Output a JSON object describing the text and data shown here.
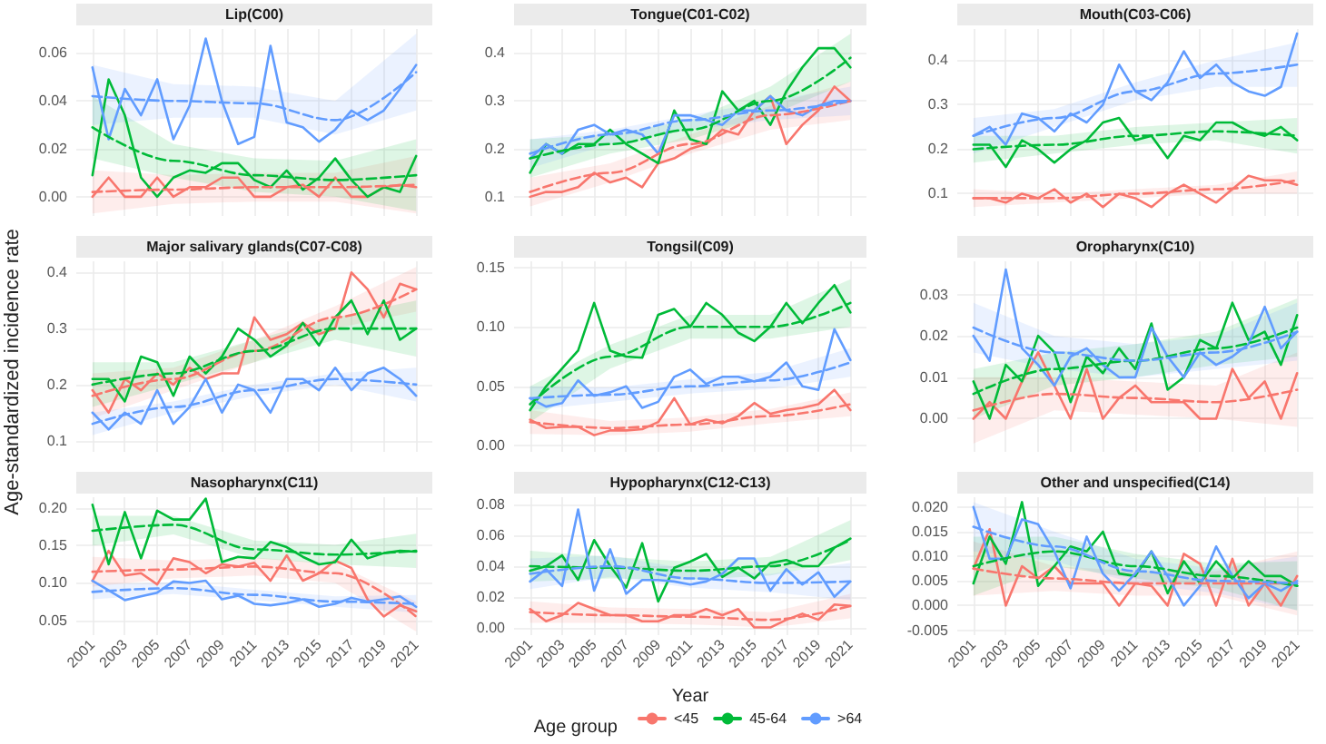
{
  "chart_data": [
    {
      "type": "line",
      "title": "Lip(C00)",
      "tick_labels": "y",
      "grid": true,
      "marker": "none",
      "x": [
        2001,
        2002,
        2003,
        2004,
        2005,
        2006,
        2007,
        2008,
        2009,
        2010,
        2011,
        2012,
        2013,
        2014,
        2015,
        2016,
        2017,
        2018,
        2019,
        2020,
        2021
      ],
      "xlim": [
        2000,
        2022
      ],
      "xticks": [
        2001,
        2003,
        2005,
        2007,
        2009,
        2011,
        2013,
        2015,
        2017,
        2019,
        2021
      ],
      "ylim": [
        -0.008,
        0.07
      ],
      "yticks": [
        {
          "value": 0,
          "label": "0.00"
        },
        {
          "value": 0.02,
          "label": "0.02"
        },
        {
          "value": 0.04,
          "label": "0.04"
        },
        {
          "value": 0.06,
          "label": "0.06"
        }
      ],
      "series": [
        {
          "color": "#f8766d",
          "values": [
            0.0,
            0.008,
            0.0,
            0.0,
            0.008,
            0.0,
            0.004,
            0.004,
            0.008,
            0.008,
            0.0,
            0.0,
            0.004,
            0.005,
            0.0,
            0.008,
            0.0,
            0.0,
            0.004,
            0.005,
            0.004
          ]
        },
        {
          "color": "#00ba38",
          "values": [
            0.009,
            0.049,
            0.034,
            0.008,
            0.0,
            0.008,
            0.011,
            0.01,
            0.014,
            0.014,
            0.007,
            0.004,
            0.011,
            0.003,
            0.008,
            0.016,
            0.007,
            0.0,
            0.004,
            0.002,
            0.017
          ]
        },
        {
          "color": "#619cff",
          "values": [
            0.054,
            0.024,
            0.045,
            0.034,
            0.049,
            0.024,
            0.038,
            0.066,
            0.04,
            0.022,
            0.025,
            0.063,
            0.031,
            0.029,
            0.023,
            0.028,
            0.036,
            0.032,
            0.036,
            0.045,
            0.055
          ]
        },
        {
          "type": "line",
          "color": "#f8766d",
          "line_style": "dashed",
          "x": [
            2001,
            2006,
            2011,
            2016,
            2021
          ],
          "values": [
            0.002,
            0.003,
            0.004,
            0.004,
            0.005
          ],
          "lower": [
            -0.007,
            -0.003,
            -0.002,
            -0.002,
            -0.007
          ],
          "upper": [
            0.011,
            0.009,
            0.01,
            0.01,
            0.017
          ]
        },
        {
          "type": "line",
          "color": "#00ba38",
          "line_style": "dashed",
          "x": [
            2001,
            2006,
            2011,
            2016,
            2021
          ],
          "values": [
            0.029,
            0.015,
            0.009,
            0.007,
            0.009
          ],
          "lower": [
            0.016,
            0.008,
            0.002,
            0.0,
            -0.006
          ],
          "upper": [
            0.042,
            0.022,
            0.016,
            0.015,
            0.024
          ]
        },
        {
          "type": "line",
          "color": "#619cff",
          "line_style": "dashed",
          "x": [
            2001,
            2006,
            2011,
            2016,
            2021
          ],
          "values": [
            0.042,
            0.04,
            0.039,
            0.032,
            0.052
          ],
          "lower": [
            0.03,
            0.033,
            0.033,
            0.026,
            0.036
          ],
          "upper": [
            0.055,
            0.047,
            0.046,
            0.04,
            0.068
          ]
        }
      ]
    },
    {
      "type": "line",
      "title": "Tongue(C01-C02)",
      "tick_labels": "y",
      "grid": true,
      "marker": "none",
      "x": [
        2001,
        2002,
        2003,
        2004,
        2005,
        2006,
        2007,
        2008,
        2009,
        2010,
        2011,
        2012,
        2013,
        2014,
        2015,
        2016,
        2017,
        2018,
        2019,
        2020,
        2021
      ],
      "xlim": [
        2000,
        2022
      ],
      "xticks": [
        2001,
        2003,
        2005,
        2007,
        2009,
        2011,
        2013,
        2015,
        2017,
        2019,
        2021
      ],
      "ylim": [
        0.06,
        0.45
      ],
      "yticks": [
        0.1,
        0.2,
        0.3,
        0.4
      ],
      "series": [
        {
          "color": "#f8766d",
          "values": [
            0.1,
            0.11,
            0.11,
            0.12,
            0.15,
            0.13,
            0.14,
            0.12,
            0.17,
            0.18,
            0.2,
            0.21,
            0.24,
            0.23,
            0.28,
            0.31,
            0.21,
            0.25,
            0.28,
            0.33,
            0.3
          ]
        },
        {
          "color": "#00ba38",
          "values": [
            0.15,
            0.21,
            0.19,
            0.21,
            0.21,
            0.24,
            0.21,
            0.19,
            0.17,
            0.28,
            0.22,
            0.21,
            0.32,
            0.28,
            0.3,
            0.25,
            0.32,
            0.37,
            0.41,
            0.41,
            0.37
          ]
        },
        {
          "color": "#619cff",
          "values": [
            0.18,
            0.21,
            0.19,
            0.24,
            0.25,
            0.23,
            0.24,
            0.23,
            0.19,
            0.27,
            0.27,
            0.26,
            0.25,
            0.28,
            0.28,
            0.31,
            0.28,
            0.27,
            0.29,
            0.3,
            0.3
          ]
        },
        {
          "type": "line",
          "color": "#f8766d",
          "line_style": "dashed",
          "x": [
            2001,
            2006,
            2011,
            2016,
            2021
          ],
          "values": [
            0.11,
            0.15,
            0.21,
            0.27,
            0.3
          ],
          "lower": [
            0.08,
            0.13,
            0.19,
            0.24,
            0.26
          ],
          "upper": [
            0.14,
            0.17,
            0.23,
            0.29,
            0.34
          ]
        },
        {
          "type": "line",
          "color": "#00ba38",
          "line_style": "dashed",
          "x": [
            2001,
            2006,
            2011,
            2016,
            2021
          ],
          "values": [
            0.18,
            0.21,
            0.24,
            0.3,
            0.39
          ],
          "lower": [
            0.14,
            0.19,
            0.22,
            0.27,
            0.34
          ],
          "upper": [
            0.22,
            0.23,
            0.26,
            0.33,
            0.44
          ]
        },
        {
          "type": "line",
          "color": "#619cff",
          "line_style": "dashed",
          "x": [
            2001,
            2006,
            2011,
            2016,
            2021
          ],
          "values": [
            0.19,
            0.23,
            0.26,
            0.28,
            0.3
          ],
          "lower": [
            0.16,
            0.21,
            0.24,
            0.26,
            0.27
          ],
          "upper": [
            0.22,
            0.24,
            0.27,
            0.3,
            0.33
          ]
        }
      ]
    },
    {
      "type": "line",
      "title": "Mouth(C03-C06)",
      "tick_labels": "y",
      "grid": true,
      "marker": "none",
      "x": [
        2001,
        2002,
        2003,
        2004,
        2005,
        2006,
        2007,
        2008,
        2009,
        2010,
        2011,
        2012,
        2013,
        2014,
        2015,
        2016,
        2017,
        2018,
        2019,
        2020,
        2021
      ],
      "xlim": [
        2000,
        2022
      ],
      "xticks": [
        2001,
        2003,
        2005,
        2007,
        2009,
        2011,
        2013,
        2015,
        2017,
        2019,
        2021
      ],
      "ylim": [
        0.05,
        0.47
      ],
      "yticks": [
        0.1,
        0.2,
        0.3,
        0.4
      ],
      "series": [
        {
          "color": "#f8766d",
          "values": [
            0.09,
            0.09,
            0.08,
            0.1,
            0.09,
            0.11,
            0.08,
            0.1,
            0.07,
            0.1,
            0.09,
            0.07,
            0.1,
            0.12,
            0.1,
            0.08,
            0.11,
            0.14,
            0.13,
            0.13,
            0.12
          ]
        },
        {
          "color": "#00ba38",
          "values": [
            0.21,
            0.21,
            0.16,
            0.22,
            0.2,
            0.17,
            0.2,
            0.22,
            0.26,
            0.27,
            0.22,
            0.23,
            0.18,
            0.23,
            0.22,
            0.26,
            0.26,
            0.24,
            0.23,
            0.25,
            0.22
          ]
        },
        {
          "color": "#619cff",
          "values": [
            0.23,
            0.25,
            0.21,
            0.28,
            0.27,
            0.24,
            0.28,
            0.26,
            0.3,
            0.39,
            0.33,
            0.31,
            0.35,
            0.42,
            0.36,
            0.39,
            0.35,
            0.33,
            0.32,
            0.34,
            0.46
          ]
        },
        {
          "type": "line",
          "color": "#f8766d",
          "line_style": "dashed",
          "x": [
            2001,
            2006,
            2011,
            2016,
            2021
          ],
          "values": [
            0.09,
            0.09,
            0.1,
            0.11,
            0.13
          ],
          "lower": [
            0.07,
            0.08,
            0.09,
            0.1,
            0.1
          ],
          "upper": [
            0.11,
            0.1,
            0.11,
            0.12,
            0.15
          ]
        },
        {
          "type": "line",
          "color": "#00ba38",
          "line_style": "dashed",
          "x": [
            2001,
            2006,
            2011,
            2016,
            2021
          ],
          "values": [
            0.2,
            0.21,
            0.23,
            0.24,
            0.23
          ],
          "lower": [
            0.17,
            0.19,
            0.21,
            0.22,
            0.19
          ],
          "upper": [
            0.23,
            0.23,
            0.25,
            0.26,
            0.27
          ]
        },
        {
          "type": "line",
          "color": "#619cff",
          "line_style": "dashed",
          "x": [
            2001,
            2006,
            2011,
            2016,
            2021
          ],
          "values": [
            0.23,
            0.27,
            0.33,
            0.37,
            0.39
          ],
          "lower": [
            0.19,
            0.25,
            0.31,
            0.34,
            0.34
          ],
          "upper": [
            0.27,
            0.29,
            0.35,
            0.4,
            0.44
          ]
        }
      ]
    },
    {
      "type": "line",
      "title": "Major salivary glands(C07-C08)",
      "ylabel": "Age-standardized incidence rate",
      "tick_labels": "y",
      "grid": true,
      "marker": "none",
      "x": [
        2001,
        2002,
        2003,
        2004,
        2005,
        2006,
        2007,
        2008,
        2009,
        2010,
        2011,
        2012,
        2013,
        2014,
        2015,
        2016,
        2017,
        2018,
        2019,
        2020,
        2021
      ],
      "xlim": [
        2000,
        2022
      ],
      "xticks": [
        2001,
        2003,
        2005,
        2007,
        2009,
        2011,
        2013,
        2015,
        2017,
        2019,
        2021
      ],
      "ylim": [
        0.08,
        0.42
      ],
      "yticks": [
        0.1,
        0.2,
        0.3,
        0.4
      ],
      "series": [
        {
          "color": "#f8766d",
          "values": [
            0.19,
            0.15,
            0.21,
            0.19,
            0.22,
            0.2,
            0.23,
            0.21,
            0.22,
            0.22,
            0.32,
            0.28,
            0.29,
            0.31,
            0.29,
            0.3,
            0.4,
            0.37,
            0.32,
            0.38,
            0.37
          ]
        },
        {
          "color": "#00ba38",
          "values": [
            0.21,
            0.21,
            0.17,
            0.25,
            0.24,
            0.18,
            0.25,
            0.22,
            0.25,
            0.3,
            0.28,
            0.25,
            0.27,
            0.31,
            0.27,
            0.32,
            0.35,
            0.29,
            0.35,
            0.28,
            0.3
          ]
        },
        {
          "color": "#619cff",
          "values": [
            0.15,
            0.12,
            0.15,
            0.13,
            0.19,
            0.13,
            0.16,
            0.21,
            0.15,
            0.2,
            0.19,
            0.15,
            0.21,
            0.21,
            0.19,
            0.23,
            0.19,
            0.22,
            0.23,
            0.21,
            0.18
          ]
        },
        {
          "type": "line",
          "color": "#f8766d",
          "line_style": "dashed",
          "x": [
            2001,
            2006,
            2011,
            2016,
            2021
          ],
          "values": [
            0.18,
            0.21,
            0.26,
            0.32,
            0.37
          ],
          "lower": [
            0.14,
            0.19,
            0.24,
            0.3,
            0.33
          ],
          "upper": [
            0.22,
            0.23,
            0.28,
            0.34,
            0.41
          ]
        },
        {
          "type": "line",
          "color": "#00ba38",
          "line_style": "dashed",
          "x": [
            2001,
            2006,
            2011,
            2016,
            2021
          ],
          "values": [
            0.2,
            0.22,
            0.26,
            0.3,
            0.3
          ],
          "lower": [
            0.16,
            0.2,
            0.24,
            0.28,
            0.25
          ],
          "upper": [
            0.24,
            0.24,
            0.28,
            0.32,
            0.35
          ]
        },
        {
          "type": "line",
          "color": "#619cff",
          "line_style": "dashed",
          "x": [
            2001,
            2006,
            2011,
            2016,
            2021
          ],
          "values": [
            0.13,
            0.16,
            0.19,
            0.21,
            0.2
          ],
          "lower": [
            0.11,
            0.15,
            0.18,
            0.2,
            0.17
          ],
          "upper": [
            0.15,
            0.17,
            0.2,
            0.22,
            0.23
          ]
        }
      ]
    },
    {
      "type": "line",
      "title": "Tongsil(C09)",
      "tick_labels": "y",
      "grid": true,
      "marker": "none",
      "x": [
        2001,
        2002,
        2003,
        2004,
        2005,
        2006,
        2007,
        2008,
        2009,
        2010,
        2011,
        2012,
        2013,
        2014,
        2015,
        2016,
        2017,
        2018,
        2019,
        2020,
        2021
      ],
      "xlim": [
        2000,
        2022
      ],
      "xticks": [
        2001,
        2003,
        2005,
        2007,
        2009,
        2011,
        2013,
        2015,
        2017,
        2019,
        2021
      ],
      "ylim": [
        -0.005,
        0.155
      ],
      "yticks": [
        {
          "value": 0,
          "label": "0.00"
        },
        {
          "value": 0.05,
          "label": "0.05"
        },
        {
          "value": 0.1,
          "label": "0.10"
        },
        {
          "value": 0.15,
          "label": "0.15"
        }
      ],
      "series": [
        {
          "color": "#f8766d",
          "values": [
            0.022,
            0.015,
            0.016,
            0.016,
            0.009,
            0.013,
            0.013,
            0.014,
            0.02,
            0.04,
            0.018,
            0.022,
            0.019,
            0.025,
            0.036,
            0.027,
            0.03,
            0.032,
            0.035,
            0.047,
            0.03
          ]
        },
        {
          "color": "#00ba38",
          "values": [
            0.03,
            0.05,
            0.065,
            0.08,
            0.12,
            0.08,
            0.075,
            0.074,
            0.11,
            0.115,
            0.1,
            0.12,
            0.11,
            0.095,
            0.088,
            0.1,
            0.12,
            0.103,
            0.12,
            0.135,
            0.112
          ]
        },
        {
          "color": "#619cff",
          "values": [
            0.04,
            0.033,
            0.036,
            0.055,
            0.042,
            0.045,
            0.05,
            0.032,
            0.037,
            0.058,
            0.064,
            0.052,
            0.058,
            0.058,
            0.054,
            0.058,
            0.07,
            0.05,
            0.047,
            0.098,
            0.072
          ]
        },
        {
          "type": "line",
          "color": "#f8766d",
          "line_style": "dashed",
          "x": [
            2001,
            2006,
            2011,
            2016,
            2021
          ],
          "values": [
            0.02,
            0.015,
            0.018,
            0.025,
            0.035
          ],
          "lower": [
            0.01,
            0.009,
            0.012,
            0.019,
            0.025
          ],
          "upper": [
            0.03,
            0.021,
            0.024,
            0.031,
            0.045
          ]
        },
        {
          "type": "line",
          "color": "#00ba38",
          "line_style": "dashed",
          "x": [
            2001,
            2006,
            2011,
            2016,
            2021
          ],
          "values": [
            0.035,
            0.075,
            0.1,
            0.1,
            0.12
          ],
          "lower": [
            0.02,
            0.065,
            0.09,
            0.09,
            0.1
          ],
          "upper": [
            0.05,
            0.085,
            0.11,
            0.11,
            0.14
          ]
        },
        {
          "type": "line",
          "color": "#619cff",
          "line_style": "dashed",
          "x": [
            2001,
            2006,
            2011,
            2016,
            2021
          ],
          "values": [
            0.04,
            0.043,
            0.05,
            0.055,
            0.07
          ],
          "lower": [
            0.03,
            0.037,
            0.044,
            0.048,
            0.058
          ],
          "upper": [
            0.05,
            0.049,
            0.056,
            0.062,
            0.082
          ]
        }
      ]
    },
    {
      "type": "line",
      "title": "Oropharynx(C10)",
      "tick_labels": "y",
      "grid": true,
      "marker": "none",
      "x": [
        2001,
        2002,
        2003,
        2004,
        2005,
        2006,
        2007,
        2008,
        2009,
        2010,
        2011,
        2012,
        2013,
        2014,
        2015,
        2016,
        2017,
        2018,
        2019,
        2020,
        2021
      ],
      "xlim": [
        2000,
        2022
      ],
      "xticks": [
        2001,
        2003,
        2005,
        2007,
        2009,
        2011,
        2013,
        2015,
        2017,
        2019,
        2021
      ],
      "ylim": [
        -0.008,
        0.038
      ],
      "yticks": [
        {
          "value": 0,
          "label": "0.00"
        },
        {
          "value": 0.01,
          "label": "0.01"
        },
        {
          "value": 0.02,
          "label": "0.02"
        },
        {
          "value": 0.03,
          "label": "0.03"
        }
      ],
      "series": [
        {
          "color": "#f8766d",
          "values": [
            0.0,
            0.004,
            0.0,
            0.009,
            0.016,
            0.008,
            0.0,
            0.012,
            0.0,
            0.005,
            0.008,
            0.004,
            0.004,
            0.004,
            0.0,
            0.0,
            0.012,
            0.005,
            0.009,
            0.0,
            0.011
          ]
        },
        {
          "color": "#00ba38",
          "values": [
            0.009,
            0.0,
            0.013,
            0.009,
            0.02,
            0.016,
            0.004,
            0.015,
            0.011,
            0.017,
            0.012,
            0.023,
            0.007,
            0.01,
            0.019,
            0.017,
            0.028,
            0.019,
            0.021,
            0.013,
            0.025
          ]
        },
        {
          "color": "#619cff",
          "values": [
            0.02,
            0.014,
            0.036,
            0.017,
            0.013,
            0.008,
            0.015,
            0.017,
            0.013,
            0.01,
            0.01,
            0.022,
            0.015,
            0.01,
            0.016,
            0.013,
            0.015,
            0.018,
            0.027,
            0.017,
            0.021
          ]
        },
        {
          "type": "line",
          "color": "#f8766d",
          "line_style": "dashed",
          "x": [
            2001,
            2006,
            2011,
            2016,
            2021
          ],
          "values": [
            0.002,
            0.006,
            0.005,
            0.004,
            0.007
          ],
          "lower": [
            -0.006,
            0.002,
            0.001,
            0.0,
            -0.002
          ],
          "upper": [
            0.01,
            0.01,
            0.009,
            0.008,
            0.016
          ]
        },
        {
          "type": "line",
          "color": "#00ba38",
          "line_style": "dashed",
          "x": [
            2001,
            2006,
            2011,
            2016,
            2021
          ],
          "values": [
            0.006,
            0.012,
            0.014,
            0.017,
            0.022
          ],
          "lower": [
            0.0,
            0.008,
            0.01,
            0.013,
            0.015
          ],
          "upper": [
            0.012,
            0.016,
            0.018,
            0.021,
            0.029
          ]
        },
        {
          "type": "line",
          "color": "#619cff",
          "line_style": "dashed",
          "x": [
            2001,
            2006,
            2011,
            2016,
            2021
          ],
          "values": [
            0.022,
            0.016,
            0.014,
            0.016,
            0.021
          ],
          "lower": [
            0.016,
            0.012,
            0.01,
            0.012,
            0.014
          ],
          "upper": [
            0.028,
            0.02,
            0.018,
            0.02,
            0.028
          ]
        }
      ]
    },
    {
      "type": "line",
      "title": "Nasopharynx(C11)",
      "grid": true,
      "marker": "none",
      "x": [
        2001,
        2002,
        2003,
        2004,
        2005,
        2006,
        2007,
        2008,
        2009,
        2010,
        2011,
        2012,
        2013,
        2014,
        2015,
        2016,
        2017,
        2018,
        2019,
        2020,
        2021
      ],
      "xlim": [
        2000,
        2022
      ],
      "xticks": [
        2001,
        2003,
        2005,
        2007,
        2009,
        2011,
        2013,
        2015,
        2017,
        2019,
        2021
      ],
      "ylim": [
        0.03,
        0.215
      ],
      "yticks": [
        {
          "value": 0.05,
          "label": "0.05"
        },
        {
          "value": 0.1,
          "label": "0.10"
        },
        {
          "value": 0.15,
          "label": "0.15"
        },
        {
          "value": 0.2,
          "label": "0.20"
        }
      ],
      "series": [
        {
          "color": "#f8766d",
          "values": [
            0.103,
            0.143,
            0.11,
            0.113,
            0.098,
            0.133,
            0.128,
            0.113,
            0.125,
            0.122,
            0.127,
            0.103,
            0.137,
            0.103,
            0.113,
            0.13,
            0.12,
            0.078,
            0.055,
            0.07,
            0.062
          ]
        },
        {
          "color": "#00ba38",
          "values": [
            0.205,
            0.125,
            0.195,
            0.133,
            0.197,
            0.185,
            0.185,
            0.213,
            0.128,
            0.135,
            0.133,
            0.155,
            0.148,
            0.135,
            0.125,
            0.128,
            0.158,
            0.133,
            0.14,
            0.143,
            0.142
          ]
        },
        {
          "color": "#619cff",
          "values": [
            0.103,
            0.09,
            0.077,
            0.082,
            0.087,
            0.102,
            0.1,
            0.103,
            0.078,
            0.083,
            0.072,
            0.07,
            0.073,
            0.078,
            0.068,
            0.072,
            0.08,
            0.075,
            0.078,
            0.082,
            0.068
          ]
        },
        {
          "type": "line",
          "color": "#f8766d",
          "line_style": "dashed",
          "x": [
            2001,
            2006,
            2011,
            2016,
            2021
          ],
          "values": [
            0.115,
            0.118,
            0.122,
            0.113,
            0.055
          ],
          "lower": [
            0.095,
            0.106,
            0.11,
            0.1,
            0.035
          ],
          "upper": [
            0.135,
            0.13,
            0.134,
            0.126,
            0.075
          ]
        },
        {
          "type": "line",
          "color": "#00ba38",
          "line_style": "dashed",
          "x": [
            2001,
            2006,
            2011,
            2016,
            2021
          ],
          "values": [
            0.17,
            0.178,
            0.145,
            0.138,
            0.143
          ],
          "lower": [
            0.15,
            0.165,
            0.133,
            0.125,
            0.12
          ],
          "upper": [
            0.19,
            0.19,
            0.157,
            0.151,
            0.166
          ]
        },
        {
          "type": "line",
          "color": "#619cff",
          "line_style": "dashed",
          "x": [
            2001,
            2006,
            2011,
            2016,
            2021
          ],
          "values": [
            0.088,
            0.093,
            0.084,
            0.075,
            0.072
          ],
          "lower": [
            0.078,
            0.085,
            0.077,
            0.068,
            0.06
          ],
          "upper": [
            0.098,
            0.101,
            0.091,
            0.082,
            0.084
          ]
        }
      ]
    },
    {
      "type": "line",
      "title": "Hypopharynx(C12-C13)",
      "xlabel": "Year",
      "legend": "bottom",
      "legend_title": "Age group",
      "grid": true,
      "marker": "none",
      "x": [
        2001,
        2002,
        2003,
        2004,
        2005,
        2006,
        2007,
        2008,
        2009,
        2010,
        2011,
        2012,
        2013,
        2014,
        2015,
        2016,
        2017,
        2018,
        2019,
        2020,
        2021
      ],
      "xlim": [
        2000,
        2022
      ],
      "xticks": [
        2001,
        2003,
        2005,
        2007,
        2009,
        2011,
        2013,
        2015,
        2017,
        2019,
        2021
      ],
      "ylim": [
        -0.005,
        0.085
      ],
      "yticks": [
        {
          "value": 0,
          "label": "0.00"
        },
        {
          "value": 0.02,
          "label": "0.02"
        },
        {
          "value": 0.04,
          "label": "0.04"
        },
        {
          "value": 0.06,
          "label": "0.06"
        },
        {
          "value": 0.08,
          "label": "0.08"
        }
      ],
      "series": [
        {
          "name": "<45",
          "color": "#f8766d",
          "values": [
            0.012,
            0.004,
            0.008,
            0.016,
            0.012,
            0.008,
            0.008,
            0.004,
            0.004,
            0.008,
            0.008,
            0.012,
            0.008,
            0.012,
            0.0,
            0.0,
            0.005,
            0.009,
            0.005,
            0.015,
            0.014
          ]
        },
        {
          "name": "45-64",
          "color": "#00ba38",
          "values": [
            0.037,
            0.04,
            0.047,
            0.031,
            0.057,
            0.04,
            0.026,
            0.055,
            0.017,
            0.039,
            0.043,
            0.048,
            0.033,
            0.039,
            0.032,
            0.042,
            0.044,
            0.04,
            0.04,
            0.052,
            0.058
          ]
        },
        {
          "name": ">64",
          "color": "#619cff",
          "values": [
            0.03,
            0.038,
            0.027,
            0.077,
            0.024,
            0.051,
            0.022,
            0.031,
            0.031,
            0.03,
            0.028,
            0.03,
            0.035,
            0.045,
            0.045,
            0.024,
            0.038,
            0.028,
            0.036,
            0.02,
            0.03
          ]
        },
        {
          "type": "line",
          "color": "#f8766d",
          "line_style": "dashed",
          "x": [
            2001,
            2006,
            2011,
            2016,
            2021
          ],
          "values": [
            0.01,
            0.008,
            0.007,
            0.005,
            0.014
          ],
          "lower": [
            0.003,
            0.003,
            0.002,
            0.0,
            0.006
          ],
          "upper": [
            0.017,
            0.013,
            0.012,
            0.01,
            0.022
          ]
        },
        {
          "type": "line",
          "color": "#00ba38",
          "line_style": "dashed",
          "x": [
            2001,
            2006,
            2011,
            2016,
            2021
          ],
          "values": [
            0.04,
            0.039,
            0.037,
            0.04,
            0.057
          ],
          "lower": [
            0.03,
            0.032,
            0.031,
            0.034,
            0.044
          ],
          "upper": [
            0.05,
            0.046,
            0.043,
            0.046,
            0.07
          ]
        },
        {
          "type": "line",
          "color": "#619cff",
          "line_style": "dashed",
          "x": [
            2001,
            2006,
            2011,
            2016,
            2021
          ],
          "values": [
            0.035,
            0.04,
            0.032,
            0.029,
            0.03
          ],
          "lower": [
            0.025,
            0.033,
            0.026,
            0.023,
            0.018
          ],
          "upper": [
            0.045,
            0.047,
            0.038,
            0.035,
            0.042
          ]
        }
      ]
    },
    {
      "type": "line",
      "title": "Other and unspecified(C14)",
      "grid": true,
      "marker": "none",
      "x": [
        2001,
        2002,
        2003,
        2004,
        2005,
        2006,
        2007,
        2008,
        2009,
        2010,
        2011,
        2012,
        2013,
        2014,
        2015,
        2016,
        2017,
        2018,
        2019,
        2020,
        2021
      ],
      "xlim": [
        2000,
        2022
      ],
      "xticks": [
        2001,
        2003,
        2005,
        2007,
        2009,
        2011,
        2013,
        2015,
        2017,
        2019,
        2021
      ],
      "ylim": [
        -0.006,
        0.022
      ],
      "yticks": [
        {
          "value": -0.005,
          "label": "-0.005"
        },
        {
          "value": 0,
          "label": "0.000"
        },
        {
          "value": 0.005,
          "label": "0.005"
        },
        {
          "value": 0.01,
          "label": "0.010"
        },
        {
          "value": 0.015,
          "label": "0.015"
        },
        {
          "value": 0.02,
          "label": "0.020"
        }
      ],
      "series": [
        {
          "color": "#f8766d",
          "values": [
            0.0075,
            0.0155,
            0.0,
            0.008,
            0.0055,
            0.008,
            0.0045,
            0.0045,
            0.0045,
            0.0,
            0.0045,
            0.004,
            0.0,
            0.0105,
            0.0085,
            0.0,
            0.0095,
            0.0,
            0.0045,
            0.0,
            0.006
          ]
        },
        {
          "color": "#00ba38",
          "values": [
            0.0045,
            0.014,
            0.0085,
            0.021,
            0.004,
            0.008,
            0.012,
            0.011,
            0.015,
            0.0065,
            0.006,
            0.011,
            0.0025,
            0.009,
            0.0045,
            0.009,
            0.0055,
            0.009,
            0.006,
            0.006,
            0.004
          ]
        },
        {
          "color": "#619cff",
          "values": [
            0.02,
            0.0095,
            0.0095,
            0.0175,
            0.0165,
            0.011,
            0.0035,
            0.014,
            0.0065,
            0.003,
            0.0065,
            0.011,
            0.006,
            0.0,
            0.004,
            0.012,
            0.006,
            0.0015,
            0.0045,
            0.003,
            0.005
          ]
        },
        {
          "type": "line",
          "color": "#f8766d",
          "line_style": "dashed",
          "x": [
            2001,
            2006,
            2011,
            2016,
            2021
          ],
          "values": [
            0.0075,
            0.0055,
            0.0045,
            0.0045,
            0.0045
          ],
          "lower": [
            0.002,
            0.003,
            0.002,
            0.002,
            -0.002
          ],
          "upper": [
            0.013,
            0.008,
            0.007,
            0.007,
            0.011
          ]
        },
        {
          "type": "line",
          "color": "#00ba38",
          "line_style": "dashed",
          "x": [
            2001,
            2006,
            2011,
            2016,
            2021
          ],
          "values": [
            0.008,
            0.011,
            0.008,
            0.006,
            0.004
          ],
          "lower": [
            0.002,
            0.008,
            0.0055,
            0.0035,
            -0.001
          ],
          "upper": [
            0.014,
            0.014,
            0.0105,
            0.0085,
            0.009
          ]
        },
        {
          "type": "line",
          "color": "#619cff",
          "line_style": "dashed",
          "x": [
            2001,
            2006,
            2011,
            2016,
            2021
          ],
          "values": [
            0.016,
            0.012,
            0.007,
            0.005,
            0.0045
          ],
          "lower": [
            0.011,
            0.009,
            0.0045,
            0.0025,
            -0.001
          ],
          "upper": [
            0.021,
            0.015,
            0.0095,
            0.0075,
            0.01
          ]
        }
      ]
    }
  ]
}
